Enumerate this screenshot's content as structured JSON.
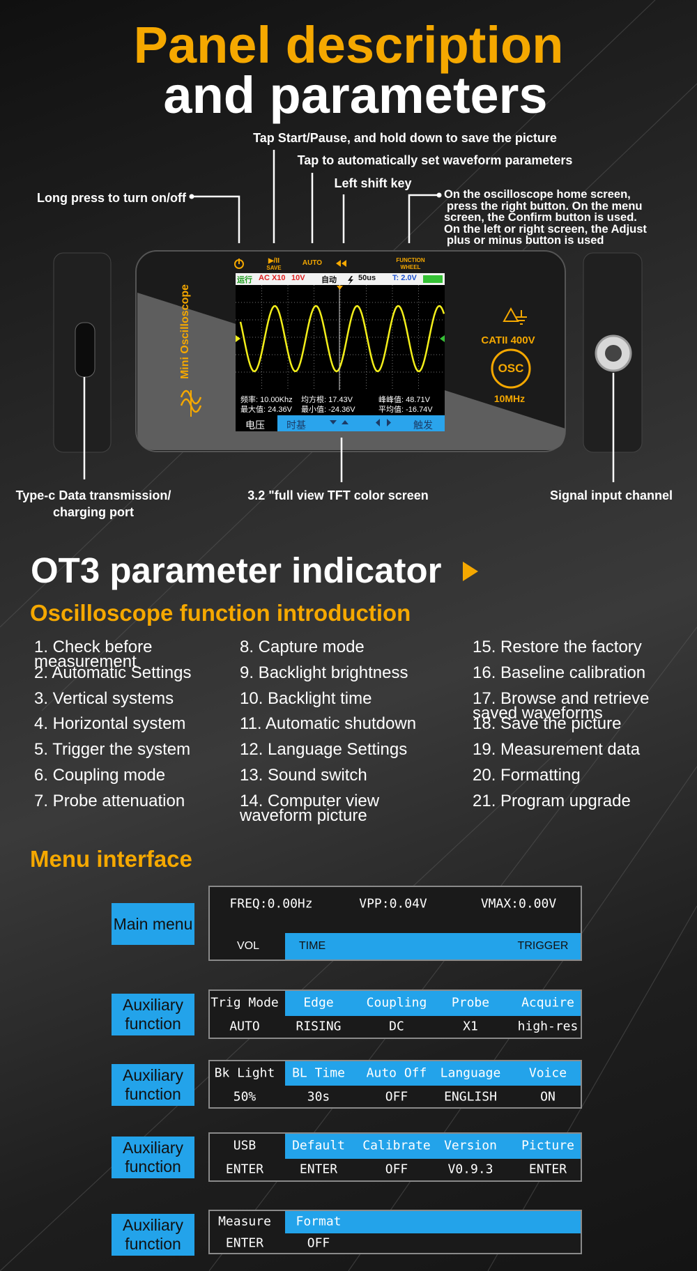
{
  "header": {
    "title_line1": "Panel description",
    "title_line2": "and parameters"
  },
  "callouts": {
    "save": "Tap Start/Pause, and hold down to save the picture",
    "auto": "Tap to automatically set waveform parameters",
    "left_shift": "Left shift key",
    "power": "Long press to turn on/off",
    "function_wheel": [
      "On the oscilloscope home screen,",
      "press the right button. On the menu",
      "screen, the Confirm button is used.",
      "On the left or right screen, the Adjust",
      "plus or minus button is used"
    ],
    "type_c": [
      "Type-c Data transmission/",
      "charging port"
    ],
    "screen": "3.2 \"full view TFT color screen",
    "signal": "Signal input channel"
  },
  "device": {
    "start_label": "▶/II",
    "save_label": "SAVE",
    "auto_label": "AUTO",
    "wheel_label": [
      "FUNCTION",
      "WHEEL"
    ],
    "brand": "Mini Oscilloscope",
    "rating": "CATII 400V",
    "osc": "OSC",
    "bandwidth": "10MHz"
  },
  "screen": {
    "status": [
      "运行",
      "AC X10",
      "10V",
      "自动",
      "50us",
      "T: 2.0V"
    ],
    "measurements": [
      "频率: 10.00Khz",
      "均方根: 17.43V",
      "峰峰值: 48.71V",
      "最大值: 24.36V",
      "最小值: -24.36V",
      "平均值: -16.74V"
    ],
    "menu": [
      "电压",
      "时基",
      "触发"
    ]
  },
  "section": {
    "title": "OT3 parameter indicator"
  },
  "functions": {
    "title": "Oscilloscope function introduction",
    "items": [
      "1. Check before measurement",
      "2. Automatic Settings",
      "3. Vertical systems",
      "4. Horizontal system",
      "5. Trigger the system",
      "6. Coupling mode",
      "7. Probe attenuation",
      "8. Capture mode",
      "9. Backlight brightness",
      "10. Backlight time",
      "11. Automatic shutdown",
      "12. Language Settings",
      "13. Sound switch",
      "14. Computer view waveform picture",
      "15. Restore the factory",
      "16. Baseline calibration",
      "17. Browse and retrieve saved waveforms",
      "18. Save the picture",
      "19. Measurement data",
      "20. Formatting",
      "21. Program upgrade"
    ]
  },
  "menu_interface": {
    "title": "Menu interface",
    "main": {
      "label": "Main menu",
      "top": [
        "FREQ:0.00Hz",
        "VPP:0.04V",
        "VMAX:0.00V"
      ],
      "bottom": [
        "VOL",
        "TIME",
        "TRIGGER"
      ]
    },
    "aux": [
      {
        "label": "Auxiliary function",
        "header": [
          "Trig Mode",
          "Edge",
          "Coupling",
          "Probe",
          "Acquire"
        ],
        "values": [
          "AUTO",
          "RISING",
          "DC",
          "X1",
          "high-res"
        ]
      },
      {
        "label": "Auxiliary function",
        "header": [
          "Bk Light",
          "BL Time",
          "Auto Off",
          "Language",
          "Voice"
        ],
        "values": [
          "50%",
          "30s",
          "OFF",
          "ENGLISH",
          "ON"
        ]
      },
      {
        "label": "Auxiliary function",
        "header": [
          "USB",
          "Default",
          "Calibrate",
          "Version",
          "Picture"
        ],
        "values": [
          "ENTER",
          "ENTER",
          "OFF",
          "V0.9.3",
          "ENTER"
        ]
      },
      {
        "label": "Auxiliary function",
        "header": [
          "Measure",
          "Format"
        ],
        "values": [
          "ENTER",
          "OFF"
        ]
      }
    ]
  }
}
